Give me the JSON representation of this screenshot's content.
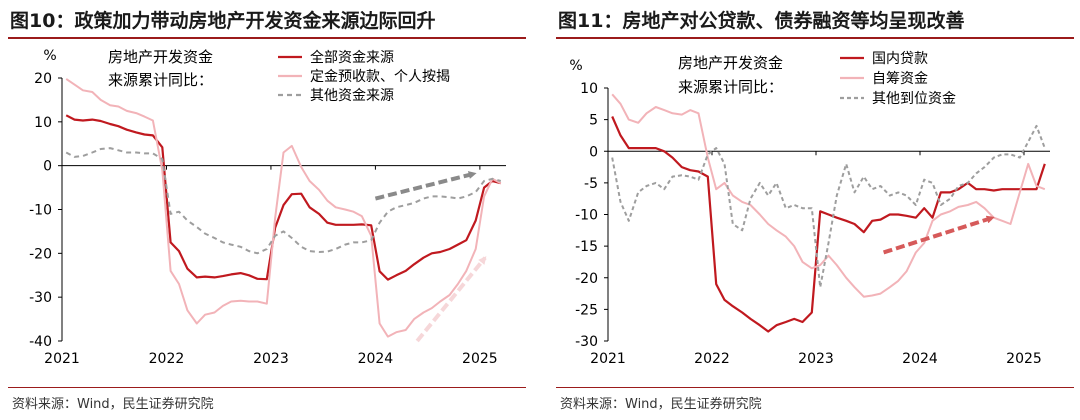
{
  "charts": [
    {
      "title": "图10：政策加力带动房地产开发资金来源边际回升",
      "source": "资料来源：Wind，民生证券研究院",
      "chart_data": {
        "type": "line",
        "ylabel": "%",
        "ylim": [
          -40,
          20
        ],
        "yticks": [
          20,
          10,
          0,
          -10,
          -20,
          -30,
          -40
        ],
        "xlim": [
          2021.0,
          2025.25
        ],
        "xticks": [
          2021,
          2022,
          2023,
          2024,
          2025
        ],
        "xtick_labels": [
          "2021",
          "2022",
          "2023",
          "2024",
          "2025"
        ],
        "legend_title": [
          "房地产开发资金",
          "来源累计同比："
        ],
        "series": [
          {
            "name": "全部资金来源",
            "color": "#c0191f",
            "dash": "",
            "x": [
              2021.04,
              2021.12,
              2021.2,
              2021.29,
              2021.37,
              2021.46,
              2021.54,
              2021.62,
              2021.71,
              2021.79,
              2021.87,
              2021.96,
              2022.04,
              2022.12,
              2022.2,
              2022.29,
              2022.37,
              2022.46,
              2022.54,
              2022.62,
              2022.71,
              2022.79,
              2022.87,
              2022.96,
              2023.04,
              2023.12,
              2023.2,
              2023.29,
              2023.37,
              2023.46,
              2023.54,
              2023.62,
              2023.71,
              2023.79,
              2023.87,
              2023.96,
              2024.04,
              2024.12,
              2024.2,
              2024.29,
              2024.37,
              2024.46,
              2024.54,
              2024.62,
              2024.71,
              2024.79,
              2024.87,
              2024.96,
              2025.04,
              2025.12,
              2025.2
            ],
            "y": [
              11.5,
              10.5,
              10.3,
              10.5,
              10.2,
              9.5,
              9.0,
              8.2,
              7.6,
              7.1,
              6.9,
              4.2,
              -17.5,
              -19.5,
              -23.5,
              -25.5,
              -25.3,
              -25.5,
              -25.2,
              -24.8,
              -24.5,
              -25.0,
              -25.8,
              -25.9,
              -14.2,
              -9.0,
              -6.5,
              -6.4,
              -9.5,
              -11.0,
              -13.0,
              -13.5,
              -13.5,
              -13.5,
              -13.4,
              -13.6,
              -24.1,
              -26.0,
              -25.0,
              -24.0,
              -22.5,
              -21.0,
              -20.0,
              -19.7,
              -19.0,
              -18.0,
              -17.0,
              -12.5,
              -5.0,
              -3.5,
              -4.0
            ]
          },
          {
            "name": "定金预收款、个人按揭",
            "color": "#f2b3b8",
            "dash": "",
            "x": [
              2021.04,
              2021.12,
              2021.2,
              2021.29,
              2021.37,
              2021.46,
              2021.54,
              2021.62,
              2021.71,
              2021.79,
              2021.87,
              2021.96,
              2022.04,
              2022.12,
              2022.2,
              2022.29,
              2022.37,
              2022.46,
              2022.54,
              2022.62,
              2022.71,
              2022.79,
              2022.87,
              2022.96,
              2023.04,
              2023.12,
              2023.2,
              2023.29,
              2023.37,
              2023.46,
              2023.54,
              2023.62,
              2023.71,
              2023.79,
              2023.87,
              2023.96,
              2024.04,
              2024.12,
              2024.2,
              2024.29,
              2024.37,
              2024.46,
              2024.54,
              2024.62,
              2024.71,
              2024.79,
              2024.87,
              2024.96,
              2025.04,
              2025.12,
              2025.2
            ],
            "y": [
              19.8,
              18.5,
              17.2,
              16.8,
              15.0,
              13.8,
              13.5,
              12.5,
              12.0,
              11.2,
              10.3,
              -1.0,
              -24.0,
              -27.0,
              -33.0,
              -36.0,
              -34.0,
              -33.5,
              -32.0,
              -31.0,
              -30.8,
              -31.0,
              -31.0,
              -31.5,
              -12.0,
              3.0,
              4.5,
              -0.3,
              -3.5,
              -5.5,
              -8.0,
              -9.5,
              -10.0,
              -10.5,
              -11.5,
              -16.0,
              -36.0,
              -39.0,
              -38.0,
              -37.5,
              -35.0,
              -33.5,
              -32.5,
              -31.0,
              -29.5,
              -27.0,
              -24.0,
              -19.0,
              -7.0,
              -3.0,
              -4.0
            ]
          },
          {
            "name": "其他资金来源",
            "color": "#9e9e9e",
            "dash": "5,4",
            "x": [
              2021.04,
              2021.12,
              2021.2,
              2021.29,
              2021.37,
              2021.46,
              2021.54,
              2021.62,
              2021.71,
              2021.79,
              2021.87,
              2021.96,
              2022.04,
              2022.12,
              2022.2,
              2022.29,
              2022.37,
              2022.46,
              2022.54,
              2022.62,
              2022.71,
              2022.79,
              2022.87,
              2022.96,
              2023.04,
              2023.12,
              2023.2,
              2023.29,
              2023.37,
              2023.46,
              2023.54,
              2023.62,
              2023.71,
              2023.79,
              2023.87,
              2023.96,
              2024.04,
              2024.12,
              2024.2,
              2024.29,
              2024.37,
              2024.46,
              2024.54,
              2024.62,
              2024.71,
              2024.79,
              2024.87,
              2024.96,
              2025.04,
              2025.12,
              2025.2
            ],
            "y": [
              3.0,
              2.0,
              2.2,
              3.0,
              3.8,
              4.0,
              3.5,
              3.0,
              3.0,
              2.8,
              2.8,
              1.5,
              -11.0,
              -10.5,
              -12.5,
              -14.0,
              -15.5,
              -16.5,
              -17.5,
              -18.0,
              -18.5,
              -19.5,
              -20.0,
              -19.0,
              -16.0,
              -15.0,
              -16.5,
              -18.5,
              -19.5,
              -19.7,
              -19.6,
              -19.0,
              -18.0,
              -17.5,
              -17.5,
              -17.0,
              -13.0,
              -10.5,
              -9.5,
              -9.0,
              -8.5,
              -7.5,
              -7.0,
              -7.0,
              -7.2,
              -7.5,
              -7.0,
              -6.0,
              -3.5,
              -3.0,
              -3.5
            ]
          }
        ],
        "annotations": [
          {
            "type": "arrow",
            "color": "#8a8a8a",
            "from": [
              2024.0,
              -7.5
            ],
            "to": [
              2024.95,
              -1.8
            ]
          },
          {
            "type": "arrow",
            "color": "#f6d7d9",
            "from": [
              2024.4,
              -40.0
            ],
            "to": [
              2025.05,
              -21.0
            ]
          }
        ]
      }
    },
    {
      "title": "图11：房地产对公贷款、债券融资等均呈现改善",
      "source": "资料来源：Wind，民生证券研究院",
      "chart_data": {
        "type": "line",
        "ylabel": "%",
        "ylim": [
          -30,
          10
        ],
        "yticks": [
          10,
          5,
          0,
          -5,
          -10,
          -15,
          -20,
          -25,
          -30
        ],
        "xlim": [
          2021.0,
          2025.25
        ],
        "xticks": [
          2021,
          2022,
          2023,
          2024,
          2025
        ],
        "xtick_labels": [
          "2021",
          "2022",
          "2023",
          "2024",
          "2025"
        ],
        "legend_title": [
          "房地产开发资金",
          "来源累计同比："
        ],
        "series": [
          {
            "name": "国内贷款",
            "color": "#c0191f",
            "dash": "",
            "x": [
              2021.04,
              2021.12,
              2021.2,
              2021.29,
              2021.37,
              2021.46,
              2021.54,
              2021.62,
              2021.71,
              2021.79,
              2021.87,
              2021.96,
              2022.04,
              2022.12,
              2022.2,
              2022.29,
              2022.37,
              2022.46,
              2022.54,
              2022.62,
              2022.71,
              2022.79,
              2022.87,
              2022.96,
              2023.04,
              2023.12,
              2023.2,
              2023.29,
              2023.37,
              2023.46,
              2023.54,
              2023.62,
              2023.71,
              2023.79,
              2023.87,
              2023.96,
              2024.04,
              2024.12,
              2024.2,
              2024.29,
              2024.37,
              2024.46,
              2024.54,
              2024.62,
              2024.71,
              2024.79,
              2024.87,
              2024.96,
              2025.04,
              2025.12,
              2025.2
            ],
            "y": [
              5.5,
              2.5,
              0.5,
              0.5,
              0.5,
              0.5,
              0.0,
              -1.0,
              -2.5,
              -3.0,
              -3.2,
              -4.0,
              -21.0,
              -23.5,
              -24.5,
              -25.5,
              -26.5,
              -27.5,
              -28.5,
              -27.5,
              -27.0,
              -26.5,
              -27.0,
              -25.5,
              -9.5,
              -10.0,
              -10.5,
              -11.0,
              -11.5,
              -12.8,
              -11.0,
              -10.8,
              -10.0,
              -10.0,
              -10.2,
              -10.5,
              -9.0,
              -10.5,
              -6.5,
              -6.5,
              -6.0,
              -5.0,
              -6.0,
              -6.0,
              -6.2,
              -6.0,
              -6.0,
              -6.0,
              -6.0,
              -6.0,
              -2.0
            ]
          },
          {
            "name": "自筹资金",
            "color": "#f2b3b8",
            "dash": "",
            "x": [
              2021.04,
              2021.12,
              2021.2,
              2021.29,
              2021.37,
              2021.46,
              2021.54,
              2021.62,
              2021.71,
              2021.79,
              2021.87,
              2021.96,
              2022.04,
              2022.12,
              2022.2,
              2022.29,
              2022.37,
              2022.46,
              2022.54,
              2022.62,
              2022.71,
              2022.79,
              2022.87,
              2022.96,
              2023.04,
              2023.12,
              2023.2,
              2023.29,
              2023.37,
              2023.46,
              2023.54,
              2023.62,
              2023.71,
              2023.79,
              2023.87,
              2023.96,
              2024.04,
              2024.12,
              2024.2,
              2024.29,
              2024.37,
              2024.46,
              2024.54,
              2024.62,
              2024.71,
              2024.79,
              2024.87,
              2024.96,
              2025.04,
              2025.12,
              2025.2
            ],
            "y": [
              9.0,
              7.5,
              5.0,
              4.5,
              6.0,
              7.0,
              6.5,
              6.0,
              5.8,
              6.5,
              6.0,
              -1.0,
              -6.0,
              -5.0,
              -7.0,
              -8.0,
              -8.5,
              -10.0,
              -11.5,
              -12.5,
              -13.5,
              -15.0,
              -17.5,
              -18.5,
              -18.0,
              -16.5,
              -18.0,
              -20.0,
              -21.5,
              -23.0,
              -22.8,
              -22.5,
              -21.5,
              -20.5,
              -19.0,
              -16.0,
              -14.5,
              -11.0,
              -10.0,
              -9.5,
              -8.8,
              -8.5,
              -8.0,
              -9.0,
              -10.5,
              -11.0,
              -11.5,
              -6.5,
              -2.0,
              -5.5,
              -6.0
            ]
          },
          {
            "name": "其他到位资金",
            "color": "#9e9e9e",
            "dash": "4,3",
            "x": [
              2021.04,
              2021.12,
              2021.2,
              2021.29,
              2021.37,
              2021.46,
              2021.54,
              2021.62,
              2021.71,
              2021.79,
              2021.87,
              2021.96,
              2022.04,
              2022.12,
              2022.2,
              2022.29,
              2022.37,
              2022.46,
              2022.54,
              2022.62,
              2022.71,
              2022.79,
              2022.87,
              2022.96,
              2023.04,
              2023.12,
              2023.2,
              2023.29,
              2023.37,
              2023.46,
              2023.54,
              2023.62,
              2023.71,
              2023.79,
              2023.87,
              2023.96,
              2024.04,
              2024.12,
              2024.2,
              2024.29,
              2024.37,
              2024.46,
              2024.54,
              2024.62,
              2024.71,
              2024.79,
              2024.87,
              2024.96,
              2025.04,
              2025.12,
              2025.2
            ],
            "y": [
              -1.0,
              -8.0,
              -11.0,
              -6.5,
              -5.5,
              -5.0,
              -6.0,
              -4.0,
              -3.8,
              -4.0,
              -4.5,
              -0.5,
              0.5,
              -2.0,
              -11.5,
              -12.5,
              -7.5,
              -5.0,
              -7.0,
              -5.0,
              -9.0,
              -8.5,
              -9.0,
              -9.0,
              -21.5,
              -14.5,
              -7.0,
              -2.0,
              -6.5,
              -4.0,
              -6.0,
              -5.5,
              -7.0,
              -6.5,
              -7.0,
              -8.5,
              -4.5,
              -5.0,
              -8.5,
              -7.5,
              -5.5,
              -5.0,
              -3.5,
              -2.5,
              -1.0,
              -0.5,
              -0.5,
              -1.0,
              1.5,
              4.0,
              0.5
            ]
          }
        ],
        "annotations": [
          {
            "type": "arrow",
            "color": "#d65a5a",
            "from": [
              2023.65,
              -16.0
            ],
            "to": [
              2024.7,
              -10.5
            ]
          }
        ]
      }
    }
  ]
}
